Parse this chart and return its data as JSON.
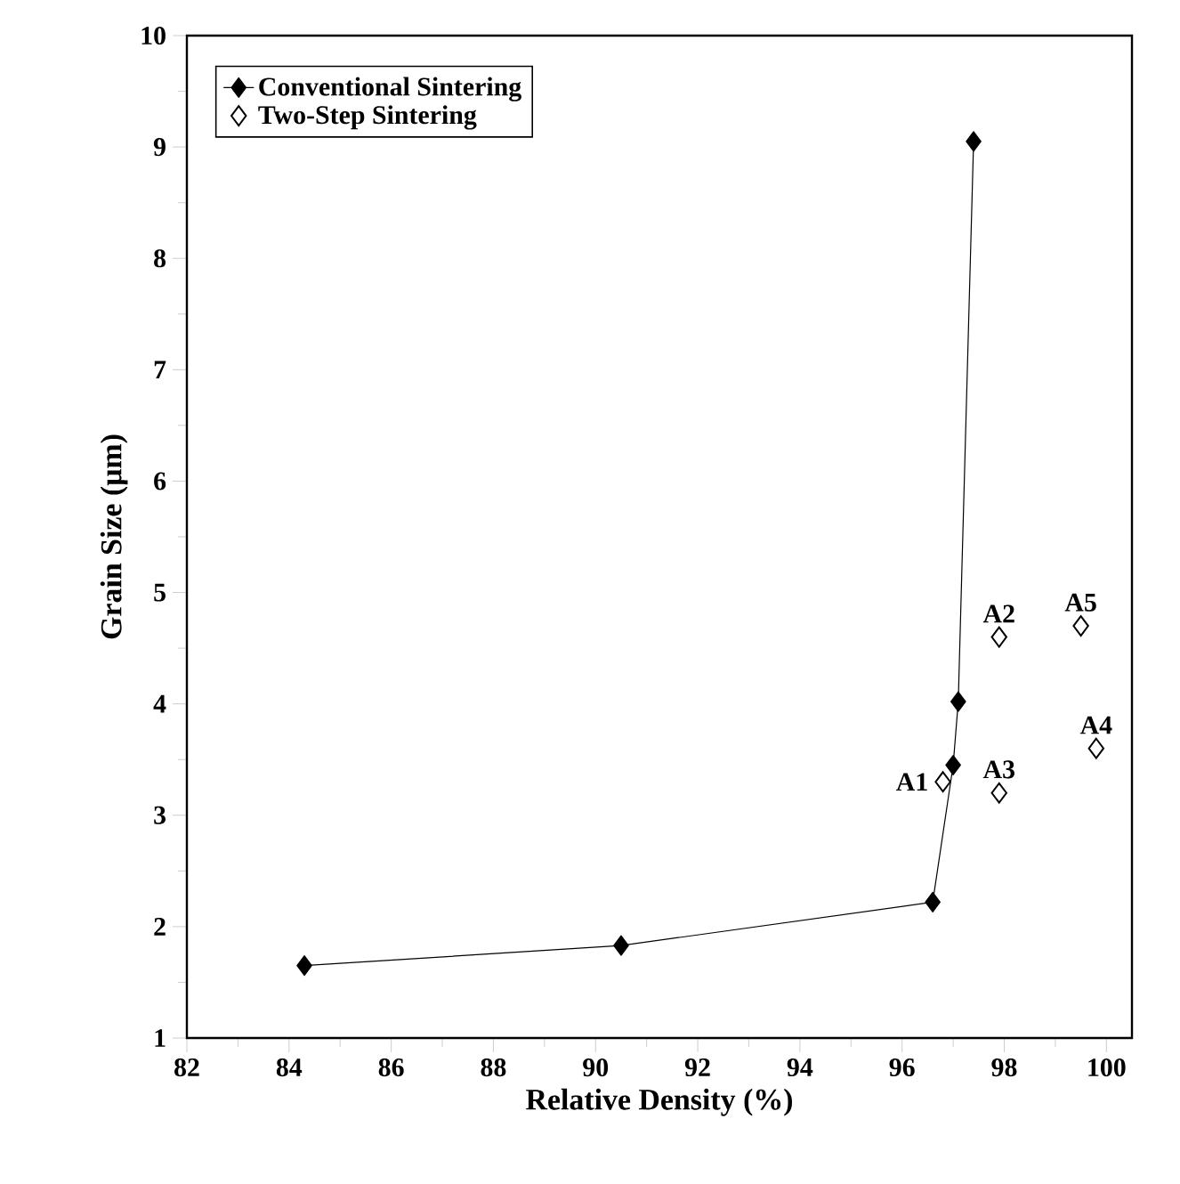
{
  "chart_data": {
    "type": "line",
    "xlabel": "Relative Density (%)",
    "ylabel": "Grain Size (μm)",
    "xlim": [
      82,
      100.5
    ],
    "xticks": [
      82,
      84,
      86,
      88,
      90,
      92,
      94,
      96,
      98,
      100
    ],
    "ylim": [
      1,
      10
    ],
    "yticks": [
      1,
      2,
      3,
      4,
      5,
      6,
      7,
      8,
      9,
      10
    ],
    "marker": "diamond",
    "legend": "top left",
    "grid": false,
    "series": [
      {
        "name": "Conventional Sintering",
        "color": "#000000",
        "x": [
          84.3,
          90.5,
          96.6,
          97.0,
          97.1,
          97.4
        ],
        "values": [
          1.65,
          1.83,
          2.22,
          3.45,
          4.02,
          9.05
        ]
      },
      {
        "name": "Two-Step Sintering",
        "type": "scatter",
        "color": "#000000",
        "x": [
          96.8,
          97.9,
          97.9,
          99.8,
          99.5
        ],
        "values": [
          3.3,
          4.6,
          3.2,
          3.6,
          4.7
        ]
      }
    ],
    "annotations": [
      {
        "text": "A1",
        "x": 96.8,
        "y": 3.3
      },
      {
        "text": "A2",
        "x": 97.9,
        "y": 4.6
      },
      {
        "text": "A3",
        "x": 97.9,
        "y": 3.2
      },
      {
        "text": "A4",
        "x": 99.8,
        "y": 3.6
      },
      {
        "text": "A5",
        "x": 99.5,
        "y": 4.7
      }
    ]
  }
}
